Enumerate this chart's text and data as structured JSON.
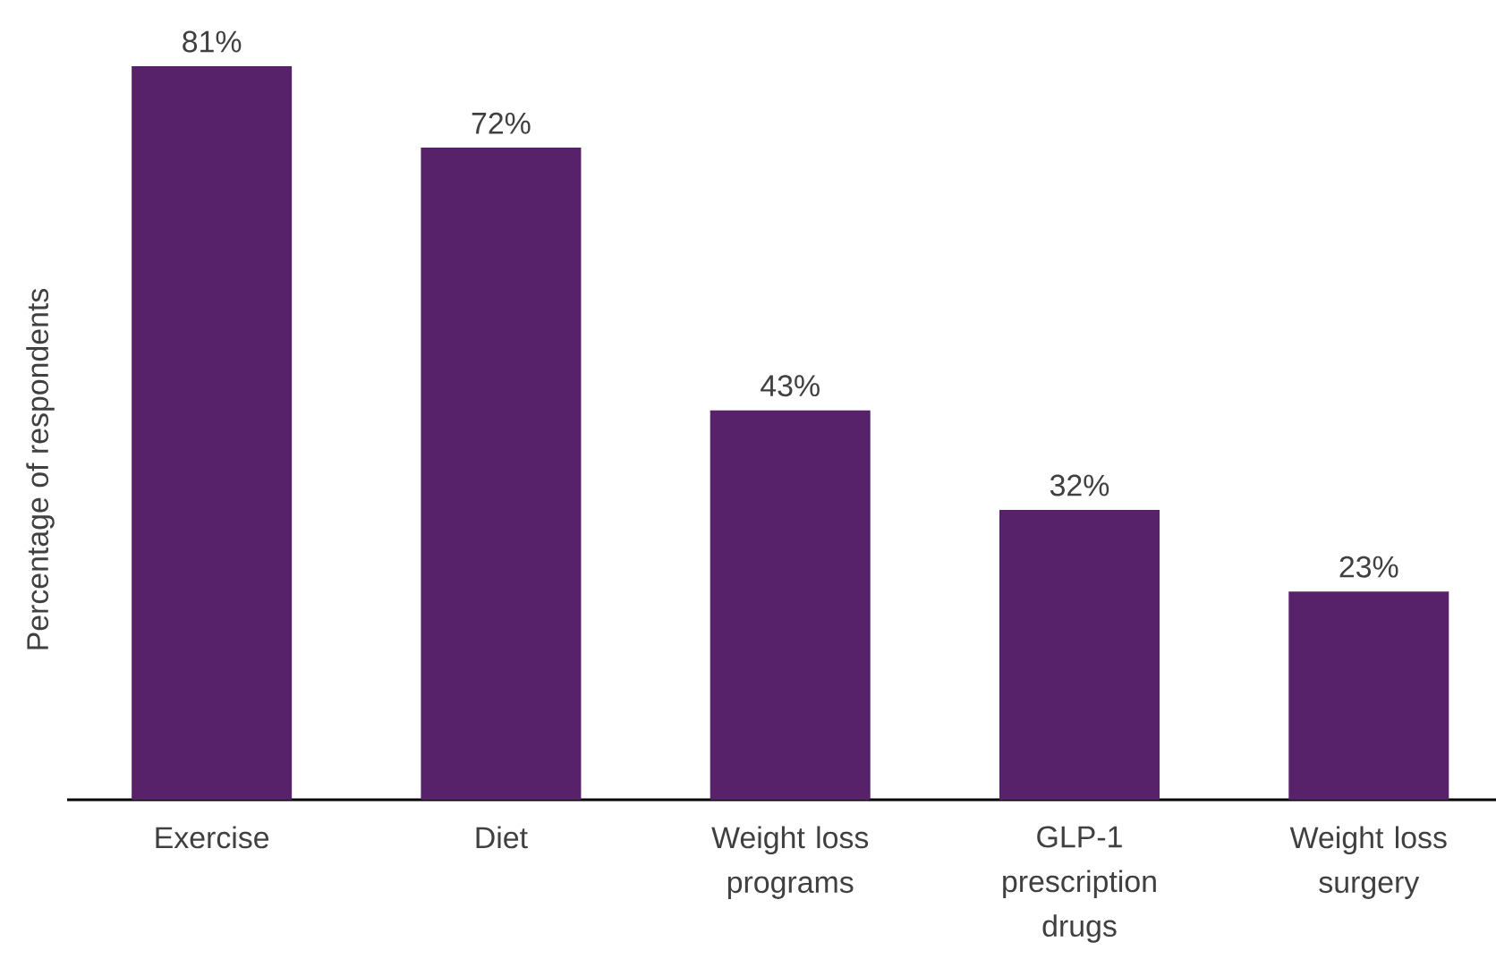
{
  "chart_data": {
    "type": "bar",
    "ylabel": "Percentage of respondents",
    "categories": [
      "Exercise",
      "Diet",
      "Weight loss programs",
      "GLP-1 prescription drugs",
      "Weight loss surgery"
    ],
    "values": [
      81,
      72,
      43,
      32,
      23
    ],
    "value_labels": [
      "81%",
      "72%",
      "43%",
      "32%",
      "23%"
    ],
    "color": "#58226b"
  }
}
